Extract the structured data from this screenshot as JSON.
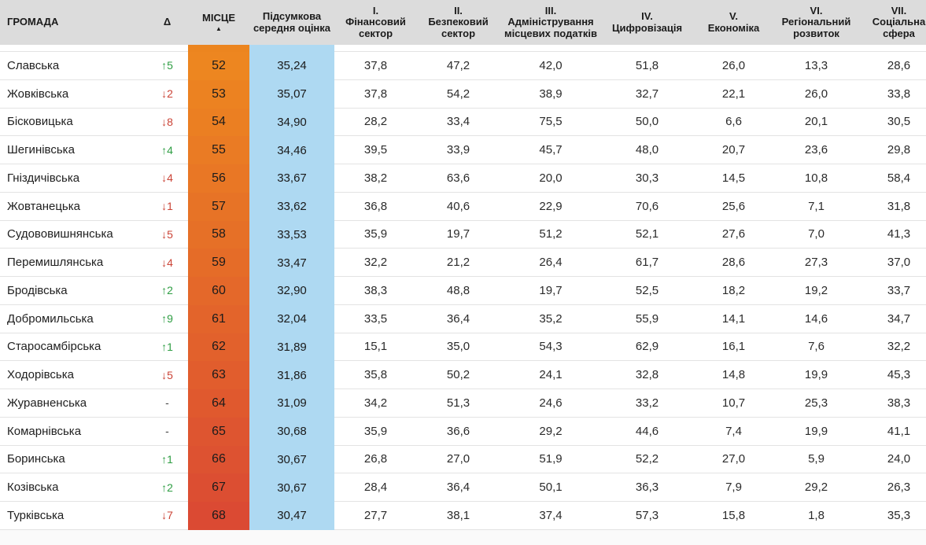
{
  "colors": {
    "header_bg": "#dcdcdc",
    "row_border": "#e3e3e3",
    "score_bg": "#aed9f2",
    "delta_up": "#2f9e44",
    "delta_down": "#cb4437",
    "delta_none": "#444444",
    "partial_place_bg": "#ec851f",
    "text_primary": "#212121",
    "page_bottom_bg": "#fafafa"
  },
  "header": {
    "columns": [
      {
        "label": "ГРОМАДА"
      },
      {
        "label": "Δ"
      },
      {
        "label": "МІСЦЕ",
        "sort_icon": "▲"
      },
      {
        "label": "Підсумкова середня оцінка"
      },
      {
        "num": "I.",
        "label": "Фінансовий сектор"
      },
      {
        "num": "II.",
        "label": "Безпековий сектор"
      },
      {
        "num": "III.",
        "label": "Адміністрування місцевих податків"
      },
      {
        "num": "IV.",
        "label": "Цифровізація"
      },
      {
        "num": "V.",
        "label": "Економіка"
      },
      {
        "num": "VI.",
        "label": "Регіональний розвиток"
      },
      {
        "num": "VII.",
        "label": "Соціальна сфера"
      }
    ]
  },
  "rows": [
    {
      "community": "Славська",
      "delta": "↑5",
      "dir": "up",
      "place": "52",
      "place_color": "#ED8620",
      "score": "35,24",
      "values": [
        "37,8",
        "47,2",
        "42,0",
        "51,8",
        "26,0",
        "13,3",
        "28,6"
      ]
    },
    {
      "community": "Жовківська",
      "delta": "↓2",
      "dir": "down",
      "place": "53",
      "place_color": "#EC8221",
      "score": "35,07",
      "values": [
        "37,8",
        "54,2",
        "38,9",
        "32,7",
        "22,1",
        "26,0",
        "33,8"
      ]
    },
    {
      "community": "Бісковицька",
      "delta": "↓8",
      "dir": "down",
      "place": "54",
      "place_color": "#EB7F22",
      "score": "34,90",
      "values": [
        "28,2",
        "33,4",
        "75,5",
        "50,0",
        "6,6",
        "20,1",
        "30,5"
      ]
    },
    {
      "community": "Шегинівська",
      "delta": "↑4",
      "dir": "up",
      "place": "55",
      "place_color": "#EA7B24",
      "score": "34,46",
      "values": [
        "39,5",
        "33,9",
        "45,7",
        "48,0",
        "20,7",
        "23,6",
        "29,8"
      ]
    },
    {
      "community": "Гніздичівська",
      "delta": "↓4",
      "dir": "down",
      "place": "56",
      "place_color": "#E97725",
      "score": "33,67",
      "values": [
        "38,2",
        "63,6",
        "20,0",
        "30,3",
        "14,5",
        "10,8",
        "58,4"
      ]
    },
    {
      "community": "Жовтанецька",
      "delta": "↓1",
      "dir": "down",
      "place": "57",
      "place_color": "#E77326",
      "score": "33,62",
      "values": [
        "36,8",
        "40,6",
        "22,9",
        "70,6",
        "25,6",
        "7,1",
        "31,8"
      ]
    },
    {
      "community": "Судововишнянська",
      "delta": "↓5",
      "dir": "down",
      "place": "58",
      "place_color": "#E67027",
      "score": "33,53",
      "values": [
        "35,9",
        "19,7",
        "51,2",
        "52,1",
        "27,6",
        "7,0",
        "41,3"
      ]
    },
    {
      "community": "Перемишлянська",
      "delta": "↓4",
      "dir": "down",
      "place": "59",
      "place_color": "#E56C28",
      "score": "33,47",
      "values": [
        "32,2",
        "21,2",
        "26,4",
        "61,7",
        "28,6",
        "27,3",
        "37,0"
      ]
    },
    {
      "community": "Бродівська",
      "delta": "↑2",
      "dir": "up",
      "place": "60",
      "place_color": "#E4682A",
      "score": "32,90",
      "values": [
        "38,3",
        "48,8",
        "19,7",
        "52,5",
        "18,2",
        "19,2",
        "33,7"
      ]
    },
    {
      "community": "Добромильська",
      "delta": "↑9",
      "dir": "up",
      "place": "61",
      "place_color": "#E3642B",
      "score": "32,04",
      "values": [
        "33,5",
        "36,4",
        "35,2",
        "55,9",
        "14,1",
        "14,6",
        "34,7"
      ]
    },
    {
      "community": "Старосамбірська",
      "delta": "↑1",
      "dir": "up",
      "place": "62",
      "place_color": "#E2612C",
      "score": "31,89",
      "values": [
        "15,1",
        "35,0",
        "54,3",
        "62,9",
        "16,1",
        "7,6",
        "32,2"
      ]
    },
    {
      "community": "Ходорівська",
      "delta": "↓5",
      "dir": "down",
      "place": "63",
      "place_color": "#E15D2D",
      "score": "31,86",
      "values": [
        "35,8",
        "50,2",
        "24,1",
        "32,8",
        "14,8",
        "19,9",
        "45,3"
      ]
    },
    {
      "community": "Журавненська",
      "delta": "-",
      "dir": "none",
      "place": "64",
      "place_color": "#E0592E",
      "score": "31,09",
      "values": [
        "34,2",
        "51,3",
        "24,6",
        "33,2",
        "10,7",
        "25,3",
        "38,3"
      ]
    },
    {
      "community": "Комарнівська",
      "delta": "-",
      "dir": "none",
      "place": "65",
      "place_color": "#DE5530",
      "score": "30,68",
      "values": [
        "35,9",
        "36,6",
        "29,2",
        "44,6",
        "7,4",
        "19,9",
        "41,1"
      ]
    },
    {
      "community": "Боринська",
      "delta": "↑1",
      "dir": "up",
      "place": "66",
      "place_color": "#DD5231",
      "score": "30,67",
      "values": [
        "26,8",
        "27,0",
        "51,9",
        "52,2",
        "27,0",
        "5,9",
        "24,0"
      ]
    },
    {
      "community": "Козівська",
      "delta": "↑2",
      "dir": "up",
      "place": "67",
      "place_color": "#DC4E32",
      "score": "30,67",
      "values": [
        "28,4",
        "36,4",
        "50,1",
        "36,3",
        "7,9",
        "29,2",
        "26,3"
      ]
    },
    {
      "community": "Турківська",
      "delta": "↓7",
      "dir": "down",
      "place": "68",
      "place_color": "#DB4A33",
      "score": "30,47",
      "values": [
        "27,7",
        "38,1",
        "37,4",
        "57,3",
        "15,8",
        "1,8",
        "35,3"
      ]
    }
  ]
}
